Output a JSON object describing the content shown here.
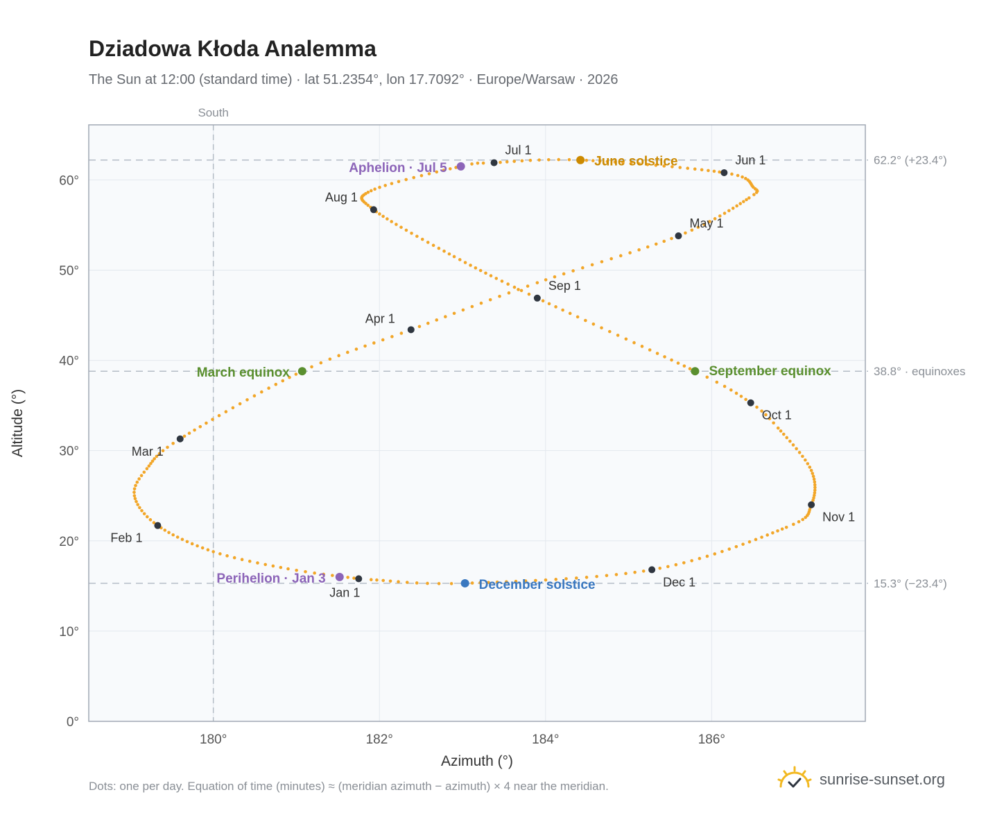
{
  "title": "Dziadowa Kłoda Analemma",
  "subtitle": "The Sun at 12:00 (standard time) · lat 51.2354°, lon 17.7092° · Europe/Warsaw · 2026",
  "footnote": "Dots: one per day. Equation of time (minutes) ≈ (meridian azimuth − azimuth) × 4 near the meridian.",
  "brand": {
    "name": "sunrise-sunset.org",
    "icon": "sun-check-icon"
  },
  "colors": {
    "path": "#f2a628",
    "month_marker": "#2f3640",
    "equinox": "#5a8f2f",
    "june_solstice": "#cc8a00",
    "december_solstice": "#3a78c0",
    "apsis": "#8c64b8",
    "grid": "#e3e8ee",
    "plot_bg": "#f8fafc",
    "frame": "#a0a8b4",
    "ref_line": "#b4bcc6"
  },
  "chart_data": {
    "type": "scatter",
    "xlabel": "Azimuth (°)",
    "ylabel": "Altitude (°)",
    "xlim": [
      178.5,
      187.85
    ],
    "ylim": [
      0,
      66.1
    ],
    "x_ticks": [
      180,
      182,
      184,
      186
    ],
    "x_tick_labels": [
      "180°",
      "182°",
      "184°",
      "186°"
    ],
    "y_ticks": [
      0,
      10,
      20,
      30,
      40,
      50,
      60
    ],
    "y_tick_labels": [
      "0°",
      "10°",
      "20°",
      "30°",
      "40°",
      "50°",
      "60°"
    ],
    "grid": true,
    "south_line": {
      "x": 180,
      "label": "South"
    },
    "reference_lines": [
      {
        "y": 62.2,
        "label": "62.2° (+23.4°)"
      },
      {
        "y": 38.8,
        "label": "38.8° · equinoxes"
      },
      {
        "y": 15.3,
        "label": "15.3° (−23.4°)"
      }
    ],
    "month_markers": [
      {
        "label": "Jan 1",
        "x": 181.75,
        "y": 15.8
      },
      {
        "label": "Feb 1",
        "x": 179.33,
        "y": 21.7
      },
      {
        "label": "Mar 1",
        "x": 179.6,
        "y": 31.3
      },
      {
        "label": "Apr 1",
        "x": 182.38,
        "y": 43.4
      },
      {
        "label": "May 1",
        "x": 185.6,
        "y": 53.8
      },
      {
        "label": "Jun 1",
        "x": 186.15,
        "y": 60.8
      },
      {
        "label": "Jul 1",
        "x": 183.38,
        "y": 61.9
      },
      {
        "label": "Aug 1",
        "x": 181.93,
        "y": 56.7
      },
      {
        "label": "Sep 1",
        "x": 183.9,
        "y": 46.9
      },
      {
        "label": "Oct 1",
        "x": 186.47,
        "y": 35.3
      },
      {
        "label": "Nov 1",
        "x": 187.2,
        "y": 24.0
      },
      {
        "label": "Dec 1",
        "x": 185.28,
        "y": 16.8
      }
    ],
    "special_points": [
      {
        "label": "March equinox",
        "x": 181.07,
        "y": 38.8,
        "kind": "equinox"
      },
      {
        "label": "September equinox",
        "x": 185.8,
        "y": 38.8,
        "kind": "equinox"
      },
      {
        "label": "June solstice",
        "x": 184.42,
        "y": 62.2,
        "kind": "june_solstice"
      },
      {
        "label": "December solstice",
        "x": 183.03,
        "y": 15.3,
        "kind": "december_solstice"
      },
      {
        "label": "Aphelion · Jul 5",
        "x": 182.98,
        "y": 61.5,
        "kind": "apsis"
      },
      {
        "label": "Perihelion · Jan 3",
        "x": 181.52,
        "y": 16.0,
        "kind": "apsis"
      }
    ],
    "path_keypoints": [
      {
        "day": 1,
        "x": 181.75,
        "y": 15.8
      },
      {
        "day": 10,
        "x": 180.9,
        "y": 16.9
      },
      {
        "day": 20,
        "x": 180.0,
        "y": 18.8
      },
      {
        "day": 32,
        "x": 179.33,
        "y": 21.7
      },
      {
        "day": 42,
        "x": 179.05,
        "y": 25.0
      },
      {
        "day": 50,
        "x": 179.2,
        "y": 28.0
      },
      {
        "day": 60,
        "x": 179.6,
        "y": 31.3
      },
      {
        "day": 79,
        "x": 181.07,
        "y": 38.8
      },
      {
        "day": 91,
        "x": 182.38,
        "y": 43.4
      },
      {
        "day": 105,
        "x": 183.9,
        "y": 48.6
      },
      {
        "day": 121,
        "x": 185.6,
        "y": 53.8
      },
      {
        "day": 136,
        "x": 186.45,
        "y": 58.0
      },
      {
        "day": 142,
        "x": 186.5,
        "y": 59.2
      },
      {
        "day": 152,
        "x": 186.15,
        "y": 60.8
      },
      {
        "day": 172,
        "x": 184.42,
        "y": 62.2
      },
      {
        "day": 182,
        "x": 183.38,
        "y": 61.9
      },
      {
        "day": 186,
        "x": 182.98,
        "y": 61.5
      },
      {
        "day": 200,
        "x": 181.9,
        "y": 58.8
      },
      {
        "day": 213,
        "x": 181.93,
        "y": 56.7
      },
      {
        "day": 230,
        "x": 182.9,
        "y": 51.5
      },
      {
        "day": 244,
        "x": 183.9,
        "y": 46.9
      },
      {
        "day": 266,
        "x": 185.8,
        "y": 38.8
      },
      {
        "day": 274,
        "x": 186.47,
        "y": 35.3
      },
      {
        "day": 280,
        "x": 186.8,
        "y": 32.5
      },
      {
        "day": 292,
        "x": 187.2,
        "y": 27.8
      },
      {
        "day": 305,
        "x": 187.2,
        "y": 24.0
      },
      {
        "day": 315,
        "x": 186.9,
        "y": 21.5
      },
      {
        "day": 335,
        "x": 185.28,
        "y": 16.8
      },
      {
        "day": 355,
        "x": 183.03,
        "y": 15.3
      },
      {
        "day": 365,
        "x": 181.9,
        "y": 15.7
      },
      {
        "day": 366,
        "x": 181.75,
        "y": 15.8
      }
    ]
  }
}
